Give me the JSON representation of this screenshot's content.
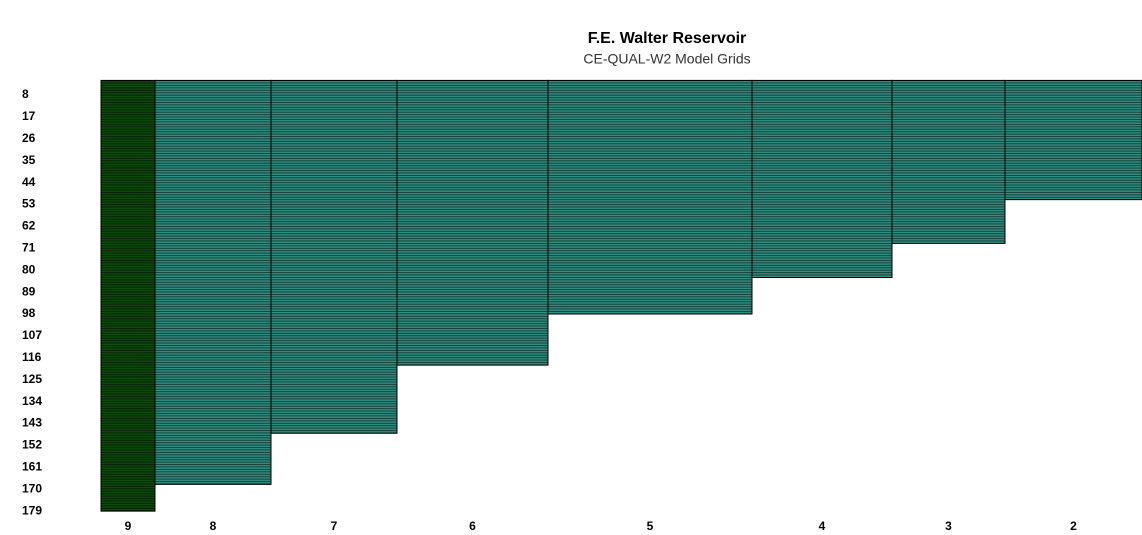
{
  "chart_data": {
    "type": "grid",
    "title": "F.E. Walter Reservoir",
    "subtitle": "CE-QUAL-W2 Model Grids",
    "categories": [
      "9",
      "8",
      "7",
      "6",
      "5",
      "4",
      "3",
      "2"
    ],
    "values": [
      179,
      168,
      147,
      119,
      98,
      83,
      69,
      51
    ],
    "colors": [
      "#0b4a0b",
      "#2f8c7e",
      "#2f8c7e",
      "#2f8c7e",
      "#2f8c7e",
      "#2f8c7e",
      "#2f8c7e",
      "#2f8c7e"
    ],
    "ylim": [
      2,
      181
    ],
    "yticks": [
      8,
      17,
      26,
      35,
      44,
      53,
      62,
      71,
      80,
      89,
      98,
      107,
      116,
      125,
      134,
      143,
      152,
      161,
      170,
      179
    ]
  }
}
